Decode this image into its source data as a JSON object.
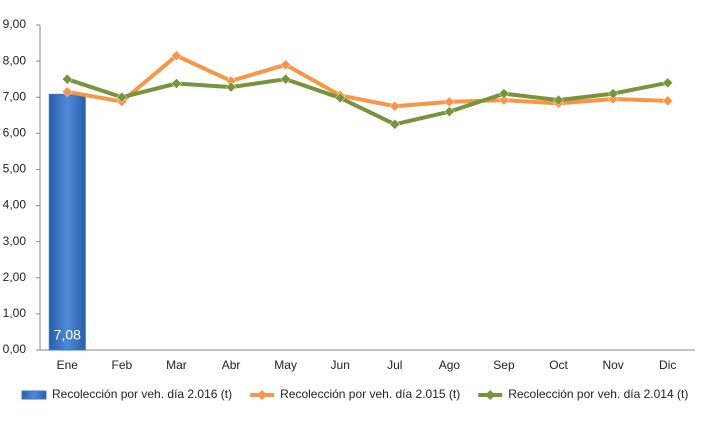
{
  "chart_data": {
    "type": "bar-line",
    "categories": [
      "Ene",
      "Feb",
      "Mar",
      "Abr",
      "May",
      "Jun",
      "Jul",
      "Ago",
      "Sep",
      "Oct",
      "Nov",
      "Dic"
    ],
    "series": [
      {
        "name": "Recolección por veh. día 2.016 (t)",
        "type": "bar",
        "color": "#3a75c4",
        "values": [
          7.08,
          null,
          null,
          null,
          null,
          null,
          null,
          null,
          null,
          null,
          null,
          null
        ],
        "value_labels": [
          "7,08",
          null,
          null,
          null,
          null,
          null,
          null,
          null,
          null,
          null,
          null,
          null
        ]
      },
      {
        "name": "Recolección por veh. día 2.015 (t)",
        "type": "line",
        "color": "#f79646",
        "values": [
          7.15,
          6.88,
          8.15,
          7.45,
          7.9,
          7.05,
          6.75,
          6.87,
          6.92,
          6.83,
          6.95,
          6.9
        ]
      },
      {
        "name": "Recolección por veh. día 2.014 (t)",
        "type": "line",
        "color": "#77933c",
        "values": [
          7.5,
          7.0,
          7.38,
          7.28,
          7.5,
          6.98,
          6.25,
          6.6,
          7.1,
          6.92,
          7.1,
          7.4
        ]
      }
    ],
    "ylim": [
      0,
      9
    ],
    "yticks": [
      {
        "value": 0,
        "label": "0,00"
      },
      {
        "value": 1,
        "label": "1,00"
      },
      {
        "value": 2,
        "label": "2,00"
      },
      {
        "value": 3,
        "label": "3,00"
      },
      {
        "value": 4,
        "label": "4,00"
      },
      {
        "value": 5,
        "label": "5,00"
      },
      {
        "value": 6,
        "label": "6,00"
      },
      {
        "value": 7,
        "label": "7,00"
      },
      {
        "value": 8,
        "label": "8,00"
      },
      {
        "value": 9,
        "label": "9,00"
      }
    ],
    "grid": false,
    "legend": "bottom"
  }
}
